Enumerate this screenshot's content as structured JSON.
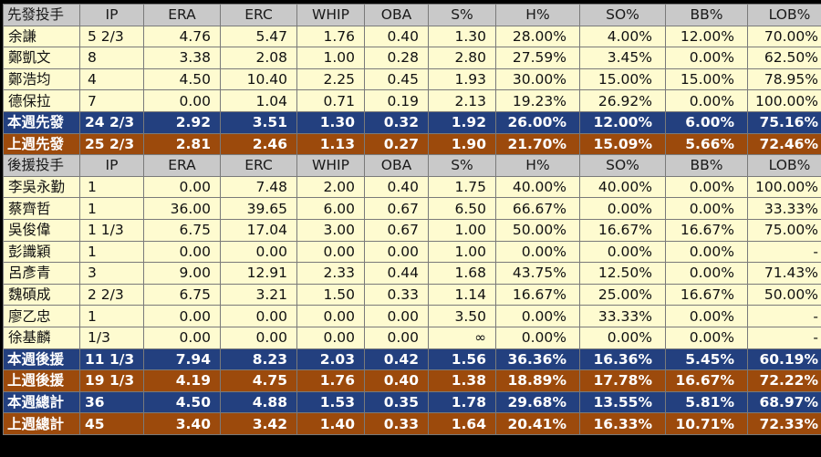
{
  "headers": [
    "IP",
    "ERA",
    "ERC",
    "WHIP",
    "OBA",
    "S%",
    "H%",
    "SO%",
    "BB%",
    "LOB%"
  ],
  "starters": {
    "title": "先發投手",
    "rows": [
      [
        "余謙",
        "5 2/3",
        "4.76",
        "5.47",
        "1.76",
        "0.40",
        "1.30",
        "28.00%",
        "4.00%",
        "12.00%",
        "70.00%"
      ],
      [
        "鄭凱文",
        "8",
        "3.38",
        "2.08",
        "1.00",
        "0.28",
        "2.80",
        "27.59%",
        "3.45%",
        "0.00%",
        "62.50%"
      ],
      [
        "鄭浩均",
        "4",
        "4.50",
        "10.40",
        "2.25",
        "0.45",
        "1.93",
        "30.00%",
        "15.00%",
        "15.00%",
        "78.95%"
      ],
      [
        "德保拉",
        "7",
        "0.00",
        "1.04",
        "0.71",
        "0.19",
        "2.13",
        "19.23%",
        "26.92%",
        "0.00%",
        "100.00%"
      ]
    ],
    "this_week": [
      "本週先發",
      "24 2/3",
      "2.92",
      "3.51",
      "1.30",
      "0.32",
      "1.92",
      "26.00%",
      "12.00%",
      "6.00%",
      "75.16%"
    ],
    "last_week": [
      "上週先發",
      "25 2/3",
      "2.81",
      "2.46",
      "1.13",
      "0.27",
      "1.90",
      "21.70%",
      "15.09%",
      "5.66%",
      "72.46%"
    ]
  },
  "relievers": {
    "title": "後援投手",
    "rows": [
      [
        "李吳永勤",
        "1",
        "0.00",
        "7.48",
        "2.00",
        "0.40",
        "1.75",
        "40.00%",
        "40.00%",
        "0.00%",
        "100.00%"
      ],
      [
        "蔡齊哲",
        "1",
        "36.00",
        "39.65",
        "6.00",
        "0.67",
        "6.50",
        "66.67%",
        "0.00%",
        "0.00%",
        "33.33%"
      ],
      [
        "吳俊偉",
        "1 1/3",
        "6.75",
        "17.04",
        "3.00",
        "0.67",
        "1.00",
        "50.00%",
        "16.67%",
        "16.67%",
        "75.00%"
      ],
      [
        "彭識穎",
        "1",
        "0.00",
        "0.00",
        "0.00",
        "0.00",
        "1.00",
        "0.00%",
        "0.00%",
        "0.00%",
        "-"
      ],
      [
        "呂彥青",
        "3",
        "9.00",
        "12.91",
        "2.33",
        "0.44",
        "1.68",
        "43.75%",
        "12.50%",
        "0.00%",
        "71.43%"
      ],
      [
        "魏碩成",
        "2 2/3",
        "6.75",
        "3.21",
        "1.50",
        "0.33",
        "1.14",
        "16.67%",
        "25.00%",
        "16.67%",
        "50.00%"
      ],
      [
        "廖乙忠",
        "1",
        "0.00",
        "0.00",
        "0.00",
        "0.00",
        "3.50",
        "0.00%",
        "33.33%",
        "0.00%",
        "-"
      ],
      [
        "徐基麟",
        "1/3",
        "0.00",
        "0.00",
        "0.00",
        "0.00",
        "∞",
        "0.00%",
        "0.00%",
        "0.00%",
        "-"
      ]
    ],
    "this_week": [
      "本週後援",
      "11 1/3",
      "7.94",
      "8.23",
      "2.03",
      "0.42",
      "1.56",
      "36.36%",
      "16.36%",
      "5.45%",
      "60.19%"
    ],
    "last_week": [
      "上週後援",
      "19 1/3",
      "4.19",
      "4.75",
      "1.76",
      "0.40",
      "1.38",
      "18.89%",
      "17.78%",
      "16.67%",
      "72.22%"
    ]
  },
  "totals": {
    "this_week": [
      "本週總計",
      "36",
      "4.50",
      "4.88",
      "1.53",
      "0.35",
      "1.78",
      "29.68%",
      "13.55%",
      "5.81%",
      "68.97%"
    ],
    "last_week": [
      "上週總計",
      "45",
      "3.40",
      "3.42",
      "1.40",
      "0.33",
      "1.64",
      "20.41%",
      "16.33%",
      "10.71%",
      "72.33%"
    ]
  },
  "colors": {
    "header_bg": "#c9c9c9",
    "row_bg": "#fefbd0",
    "this_week_bg": "#23407f",
    "last_week_bg": "#9c4a0c"
  }
}
